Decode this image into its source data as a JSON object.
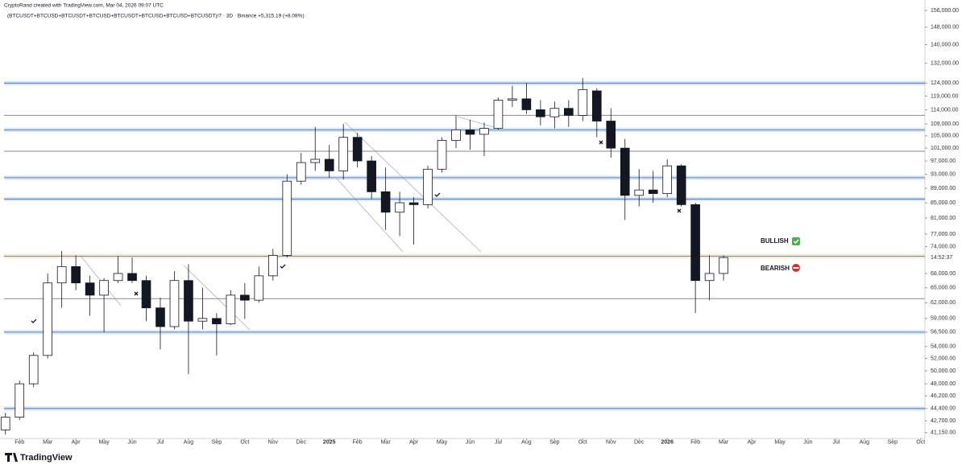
{
  "chart_data": {
    "type": "candlestick",
    "title": "CryptoRand created with TradingView.com, Mar 04, 2026 09:07 UTC",
    "subtitle": "(BTCUSDT+BTCUSD+BTCUSDT+BTCUSD+BTCUSDT+BTCUSD+BTCUSD+BTCUSDT)/7 · 3D · Binance  +5,315.19 (+8.08%)",
    "brand": "TradingView",
    "log_scale": true,
    "grid": false,
    "up_color": "#ffffff",
    "down_color": "#131722",
    "xlim": [
      0.45,
      33.15
    ],
    "ylim": [
      40400,
      161200
    ],
    "x": [
      0.5,
      1,
      1.5,
      2,
      2.5,
      3,
      3.5,
      4,
      4.5,
      5,
      5.5,
      6,
      6.5,
      7,
      7.5,
      8,
      8.5,
      9,
      9.5,
      10,
      10.5,
      11,
      11.5,
      12,
      12.5,
      13,
      13.5,
      14,
      14.5,
      15,
      15.5,
      16,
      16.5,
      17,
      17.5,
      18,
      18.5,
      19,
      19.5,
      20,
      20.5,
      21,
      21.5,
      22,
      22.5,
      23,
      23.5,
      24,
      24.5,
      25,
      25.5,
      26
    ],
    "open": [
      41500,
      43200,
      48000,
      52500,
      66000,
      69500,
      66000,
      63500,
      66500,
      68000,
      66500,
      61000,
      57500,
      66500,
      58500,
      59000,
      58000,
      63500,
      62500,
      67500,
      72000,
      91000,
      96500,
      97500,
      94000,
      104500,
      97000,
      88000,
      82500,
      85000,
      84500,
      94500,
      103500,
      107000,
      105500,
      107500,
      117500,
      118000,
      114000,
      111500,
      114500,
      112000,
      121000,
      110000,
      101000,
      87000,
      88500,
      87500,
      95500,
      84500,
      66500,
      68000
    ],
    "high": [
      43800,
      48500,
      53000,
      68000,
      73000,
      72000,
      67500,
      67000,
      71800,
      71500,
      67500,
      63000,
      68500,
      70000,
      65000,
      60000,
      64500,
      66000,
      69500,
      73500,
      93000,
      99500,
      108000,
      102000,
      109000,
      106000,
      98500,
      95000,
      88000,
      86500,
      95500,
      104500,
      112000,
      110500,
      109500,
      118500,
      123000,
      124000,
      117500,
      117000,
      117500,
      126000,
      122000,
      114500,
      104000,
      94500,
      94000,
      97500,
      96000,
      85000,
      72000,
      72000
    ],
    "low": [
      40900,
      42800,
      47500,
      52000,
      61000,
      64500,
      59500,
      56500,
      66000,
      66000,
      58500,
      53500,
      57000,
      49500,
      57000,
      52500,
      57800,
      58900,
      62000,
      66500,
      71500,
      90000,
      94000,
      92000,
      91500,
      95000,
      86000,
      78000,
      76500,
      74500,
      83500,
      93500,
      101000,
      100500,
      98500,
      107000,
      115000,
      112500,
      108500,
      107500,
      108000,
      110000,
      104500,
      98000,
      80500,
      84000,
      85000,
      86500,
      84000,
      60000,
      62500,
      66500
    ],
    "close": [
      43200,
      48000,
      52500,
      66000,
      69500,
      66000,
      63500,
      66500,
      68000,
      66500,
      61000,
      57500,
      66500,
      58500,
      59000,
      58000,
      63500,
      62500,
      67500,
      72000,
      91000,
      96500,
      97500,
      94000,
      104500,
      97000,
      88000,
      82500,
      85000,
      84500,
      94500,
      103500,
      107000,
      105500,
      107500,
      117500,
      118000,
      114000,
      111500,
      114500,
      112000,
      121500,
      110000,
      101000,
      87000,
      88500,
      87500,
      95500,
      84500,
      66500,
      68000,
      71500
    ],
    "levels": [
      {
        "value": 124000,
        "color": "#9fc3ea"
      },
      {
        "value": 112000,
        "color": "#8a8a8a"
      },
      {
        "value": 107000,
        "color": "#9fc3ea"
      },
      {
        "value": 100000,
        "color": "#8a8a8a"
      },
      {
        "value": 92000,
        "color": "#9fc3ea"
      },
      {
        "value": 86000,
        "color": "#9fc3ea"
      },
      {
        "value": 71800,
        "color": "#f5cf8a"
      },
      {
        "value": 62800,
        "color": "#8a8a8a"
      },
      {
        "value": 56500,
        "color": "#9fc3ea"
      },
      {
        "value": 44400,
        "color": "#9fc3ea"
      }
    ],
    "price_tag": {
      "value": 71500,
      "label": "14:52:37"
    },
    "annotations": [
      {
        "text": "BULLISH",
        "color": "#2e7d32"
      },
      {
        "text": "BEARISH",
        "color": "#b71c1c"
      }
    ],
    "xticks": [
      {
        "value": 1,
        "label": "Feb"
      },
      {
        "value": 2,
        "label": "Mar"
      },
      {
        "value": 3,
        "label": "Apr"
      },
      {
        "value": 4,
        "label": "May"
      },
      {
        "value": 5,
        "label": "Jun"
      },
      {
        "value": 6,
        "label": "Jul"
      },
      {
        "value": 7,
        "label": "Aug"
      },
      {
        "value": 8,
        "label": "Sep"
      },
      {
        "value": 9,
        "label": "Oct"
      },
      {
        "value": 10,
        "label": "Nov"
      },
      {
        "value": 11,
        "label": "Dec"
      },
      {
        "value": 12,
        "label": "2025"
      },
      {
        "value": 13,
        "label": "Feb"
      },
      {
        "value": 14,
        "label": "Mar"
      },
      {
        "value": 15,
        "label": "Apr"
      },
      {
        "value": 16,
        "label": "May"
      },
      {
        "value": 17,
        "label": "Jun"
      },
      {
        "value": 18,
        "label": "Jul"
      },
      {
        "value": 19,
        "label": "Aug"
      },
      {
        "value": 20,
        "label": "Sep"
      },
      {
        "value": 21,
        "label": "Oct"
      },
      {
        "value": 22,
        "label": "Nov"
      },
      {
        "value": 23,
        "label": "Dec"
      },
      {
        "value": 24,
        "label": "2026"
      },
      {
        "value": 25,
        "label": "Feb"
      },
      {
        "value": 26,
        "label": "Mar"
      },
      {
        "value": 27,
        "label": "Apr"
      },
      {
        "value": 28,
        "label": "May"
      },
      {
        "value": 29,
        "label": "Jun"
      },
      {
        "value": 30,
        "label": "Jul"
      },
      {
        "value": 31,
        "label": "Aug"
      },
      {
        "value": 32,
        "label": "Sep"
      },
      {
        "value": 33,
        "label": "Oct"
      }
    ],
    "yticks": [
      {
        "value": 156000,
        "label": "156,000.00"
      },
      {
        "value": 148000,
        "label": "148,000.00"
      },
      {
        "value": 140000,
        "label": "140,000.00"
      },
      {
        "value": 132000,
        "label": "132,000.00"
      },
      {
        "value": 124000,
        "label": "124,000.00"
      },
      {
        "value": 119000,
        "label": "119,000.00"
      },
      {
        "value": 114000,
        "label": "114,000.00"
      },
      {
        "value": 109000,
        "label": "109,000.00"
      },
      {
        "value": 105000,
        "label": "105,000.00"
      },
      {
        "value": 101000,
        "label": "101,000.00"
      },
      {
        "value": 97000,
        "label": "97,000.00"
      },
      {
        "value": 93000,
        "label": "93,000.00"
      },
      {
        "value": 89000,
        "label": "89,000.00"
      },
      {
        "value": 85000,
        "label": "85,000.00"
      },
      {
        "value": 81000,
        "label": "81,000.00"
      },
      {
        "value": 77000,
        "label": "77,000.00"
      },
      {
        "value": 74000,
        "label": "74,000.00"
      },
      {
        "value": 68000,
        "label": "68,000.00"
      },
      {
        "value": 65000,
        "label": "65,000.00"
      },
      {
        "value": 62000,
        "label": "62,000.00"
      },
      {
        "value": 59000,
        "label": "59,000.00"
      },
      {
        "value": 56500,
        "label": "56,500.00"
      },
      {
        "value": 54000,
        "label": "54,000.00"
      },
      {
        "value": 52000,
        "label": "52,000.00"
      },
      {
        "value": 50000,
        "label": "50,000.00"
      },
      {
        "value": 48000,
        "label": "48,000.00"
      },
      {
        "value": 46200,
        "label": "46,200.00"
      },
      {
        "value": 44400,
        "label": "44,400.00"
      },
      {
        "value": 42700,
        "label": "42,700.00"
      },
      {
        "value": 41150,
        "label": "41,150.00"
      }
    ]
  }
}
